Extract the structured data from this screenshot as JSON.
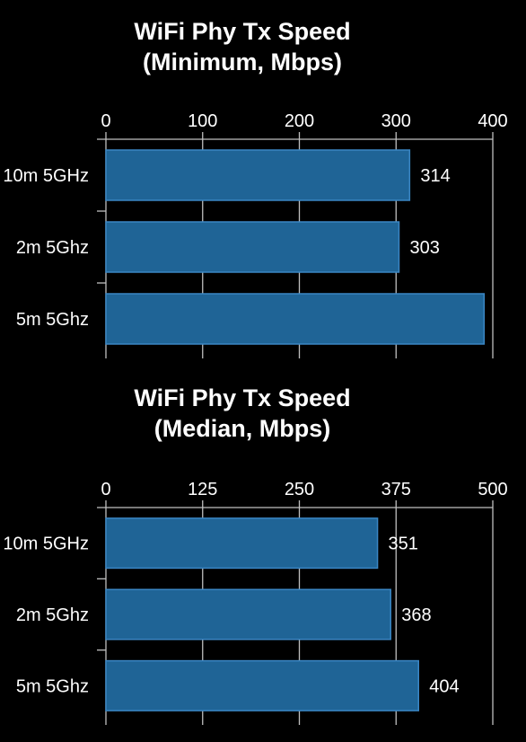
{
  "chart_data": [
    {
      "type": "bar",
      "orientation": "horizontal",
      "title": "WiFi Phy Tx Speed",
      "subtitle": "(Minimum, Mbps)",
      "categories": [
        "10m 5GHz",
        "2m 5Ghz",
        "5m 5Ghz"
      ],
      "values": [
        314,
        303,
        391
      ],
      "value_labels": [
        "314",
        "303",
        ""
      ],
      "xlim": [
        0,
        400
      ],
      "xticks": [
        "0",
        "100",
        "200",
        "300",
        "400"
      ],
      "grid": true,
      "bar_color": "#1f6496"
    },
    {
      "type": "bar",
      "orientation": "horizontal",
      "title": "WiFi Phy Tx Speed",
      "subtitle": "(Median, Mbps)",
      "categories": [
        "10m 5GHz",
        "2m 5Ghz",
        "5m 5Ghz"
      ],
      "values": [
        351,
        368,
        404
      ],
      "value_labels": [
        "351",
        "368",
        "404"
      ],
      "xlim": [
        0,
        500
      ],
      "xticks": [
        "0",
        "125",
        "250",
        "375",
        "500"
      ],
      "grid": true,
      "bar_color": "#1f6496"
    }
  ]
}
